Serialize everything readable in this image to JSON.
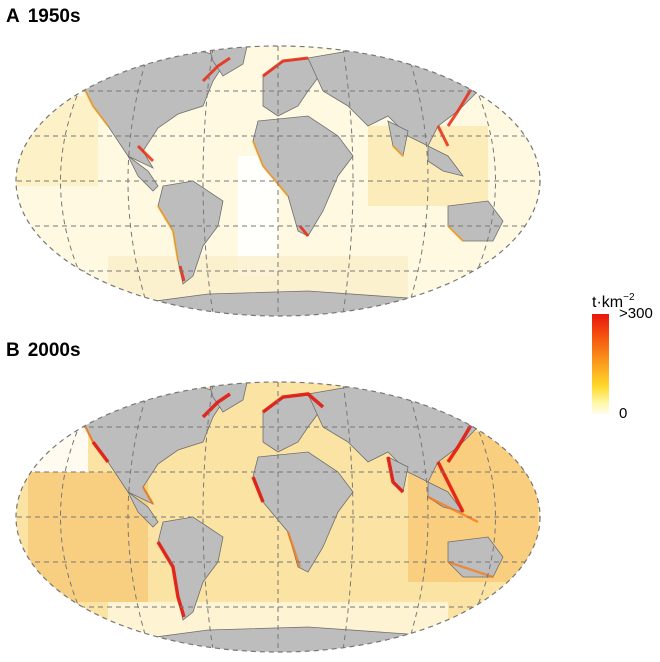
{
  "panels": [
    {
      "letter": "A",
      "title": "1950s"
    },
    {
      "letter": "B",
      "title": "2000s"
    }
  ],
  "legend": {
    "unit_base": "t·km",
    "unit_exp": "−2",
    "max_label": ">300",
    "min_label": "0",
    "colors": [
      "#fffdf0",
      "#fff7a0",
      "#ffd82a",
      "#fb9a1c",
      "#f5520f",
      "#e8160f"
    ]
  },
  "colors": {
    "land": "#bdbdbd",
    "borders": "#6f6f6f",
    "graticule": "#777777",
    "ocean_low": "#fffbe6",
    "ocean_mid": "#fbe8a8",
    "coastal_high": "#ea2a12"
  }
}
